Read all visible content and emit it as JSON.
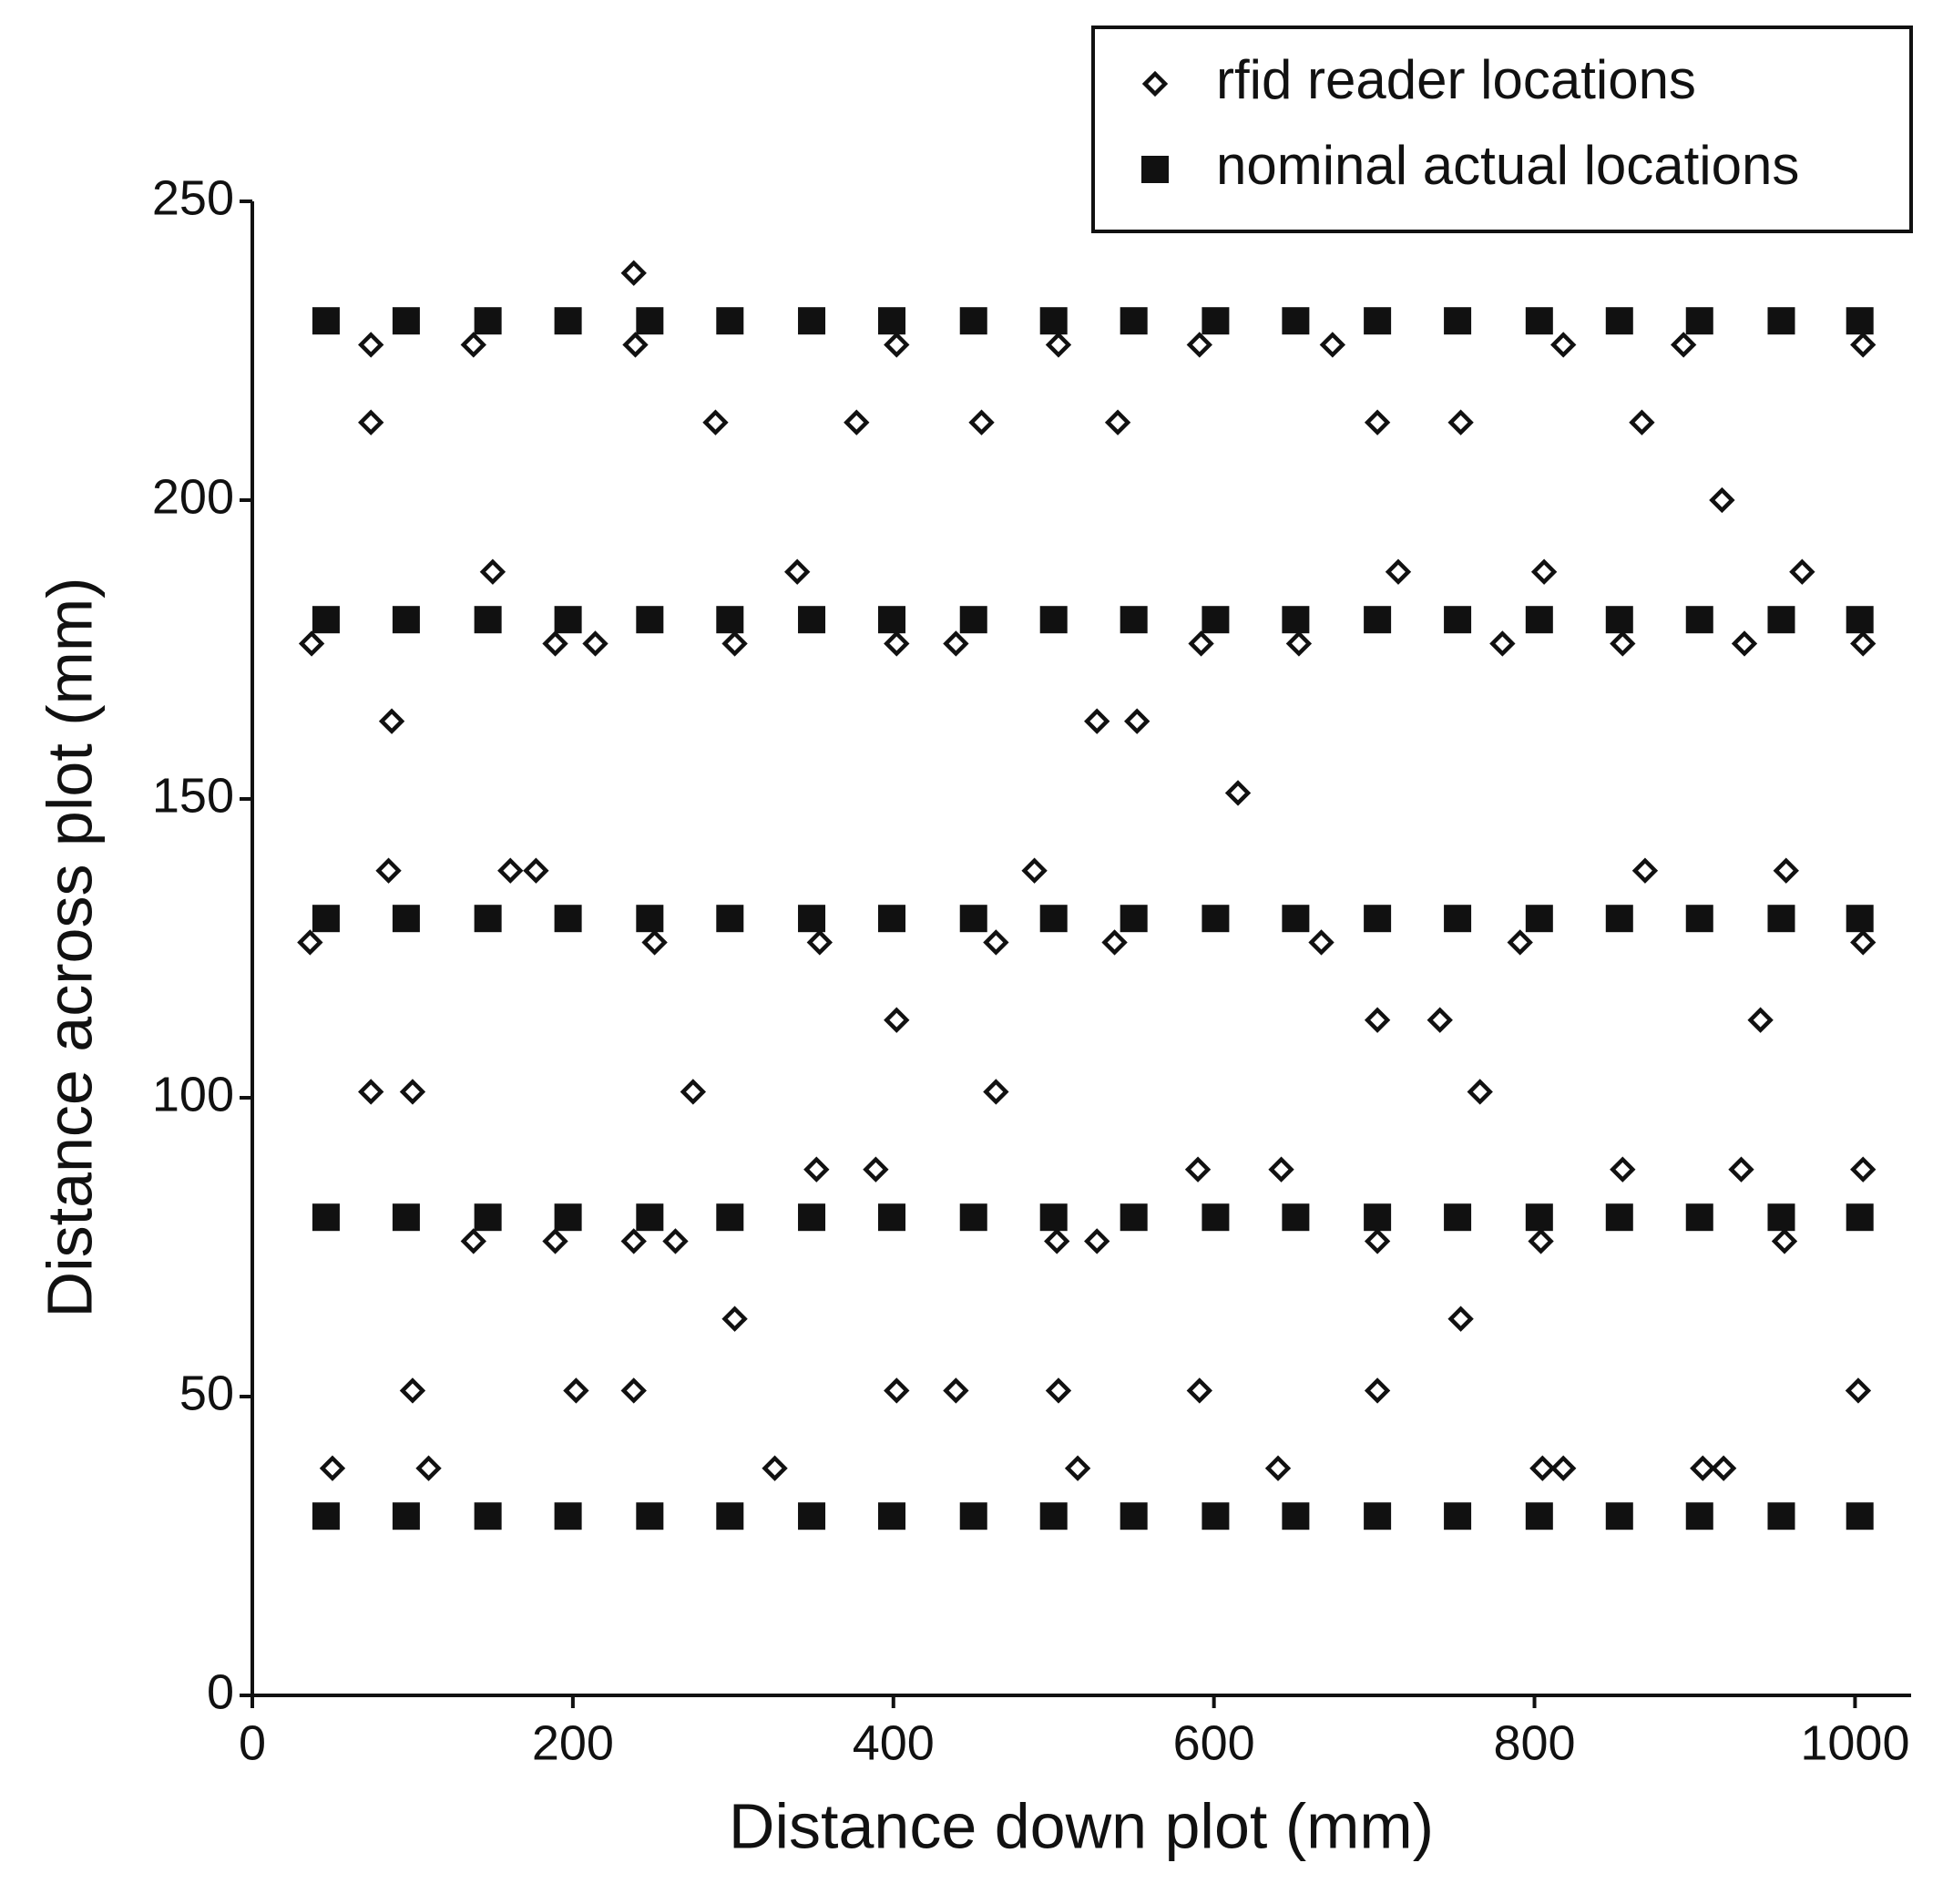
{
  "chart_data": {
    "type": "scatter",
    "x_label": "Distance down plot (mm)",
    "y_label": "Distance across plot (mm)",
    "xlim": [
      0,
      1035
    ],
    "ylim": [
      0,
      250
    ],
    "xticks": [
      0,
      200,
      400,
      600,
      800,
      1000
    ],
    "yticks": [
      0,
      50,
      100,
      150,
      200,
      250
    ],
    "legend": "top-right",
    "series": [
      {
        "name": "rfid reader locations",
        "color": "#111111",
        "marker": "diamond",
        "x": [
          238,
          74,
          138,
          239,
          402,
          503,
          591,
          674,
          818,
          893,
          1005,
          74,
          289,
          377,
          455,
          540,
          702,
          754,
          867,
          917,
          150,
          340,
          715,
          806,
          967,
          37,
          189,
          214,
          301,
          402,
          439,
          592,
          653,
          780,
          855,
          931,
          1005,
          87,
          527,
          552,
          615,
          85,
          161,
          177,
          488,
          869,
          957,
          36,
          251,
          354,
          464,
          538,
          667,
          791,
          1005,
          402,
          702,
          741,
          941,
          74,
          100,
          275,
          464,
          766,
          352,
          389,
          590,
          642,
          855,
          929,
          1005,
          138,
          189,
          238,
          264,
          502,
          527,
          702,
          804,
          956,
          301,
          754,
          100,
          202,
          238,
          402,
          439,
          503,
          591,
          702,
          1002,
          50,
          110,
          326,
          515,
          640,
          805,
          818,
          905,
          918
        ],
        "values": [
          238,
          226,
          226,
          226,
          226,
          226,
          226,
          226,
          226,
          226,
          226,
          213,
          213,
          213,
          213,
          213,
          213,
          213,
          213,
          200,
          188,
          188,
          188,
          188,
          188,
          176,
          176,
          176,
          176,
          176,
          176,
          176,
          176,
          176,
          176,
          176,
          176,
          163,
          163,
          163,
          151,
          138,
          138,
          138,
          138,
          138,
          138,
          126,
          126,
          126,
          126,
          126,
          126,
          126,
          126,
          113,
          113,
          113,
          113,
          101,
          101,
          101,
          101,
          101,
          88,
          88,
          88,
          88,
          88,
          88,
          88,
          76,
          76,
          76,
          76,
          76,
          76,
          76,
          76,
          76,
          63,
          63,
          51,
          51,
          51,
          51,
          51,
          51,
          51,
          51,
          51,
          38,
          38,
          38,
          38,
          38,
          38,
          38,
          38,
          38
        ]
      },
      {
        "name": "nominal actual locations",
        "color": "#111111",
        "marker": "square",
        "x": [
          46,
          96,
          147,
          197,
          248,
          298,
          349,
          399,
          450,
          500,
          550,
          601,
          651,
          702,
          752,
          803,
          853,
          903,
          954,
          1003,
          46,
          96,
          147,
          197,
          248,
          298,
          349,
          399,
          450,
          500,
          550,
          601,
          651,
          702,
          752,
          803,
          853,
          903,
          954,
          1003,
          46,
          96,
          147,
          197,
          248,
          298,
          349,
          399,
          450,
          500,
          550,
          601,
          651,
          702,
          752,
          803,
          853,
          903,
          954,
          1003,
          46,
          96,
          147,
          197,
          248,
          298,
          349,
          399,
          450,
          500,
          550,
          601,
          651,
          702,
          752,
          803,
          853,
          903,
          954,
          1003,
          46,
          96,
          147,
          197,
          248,
          298,
          349,
          399,
          450,
          500,
          550,
          601,
          651,
          702,
          752,
          803,
          853,
          903,
          954,
          1003
        ],
        "values": [
          230,
          230,
          230,
          230,
          230,
          230,
          230,
          230,
          230,
          230,
          230,
          230,
          230,
          230,
          230,
          230,
          230,
          230,
          230,
          230,
          180,
          180,
          180,
          180,
          180,
          180,
          180,
          180,
          180,
          180,
          180,
          180,
          180,
          180,
          180,
          180,
          180,
          180,
          180,
          180,
          130,
          130,
          130,
          130,
          130,
          130,
          130,
          130,
          130,
          130,
          130,
          130,
          130,
          130,
          130,
          130,
          130,
          130,
          130,
          130,
          80,
          80,
          80,
          80,
          80,
          80,
          80,
          80,
          80,
          80,
          80,
          80,
          80,
          80,
          80,
          80,
          80,
          80,
          80,
          80,
          30,
          30,
          30,
          30,
          30,
          30,
          30,
          30,
          30,
          30,
          30,
          30,
          30,
          30,
          30,
          30,
          30,
          30,
          30,
          30
        ]
      }
    ]
  }
}
